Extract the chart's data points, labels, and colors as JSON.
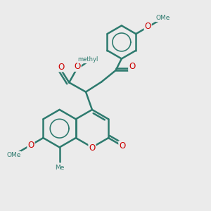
{
  "bg_color": "#ebebeb",
  "bond_color": "#2d7a6e",
  "O_color": "#cc0000",
  "bond_width": 1.8,
  "font_size": 8.5,
  "fig_size": [
    3.0,
    3.0
  ],
  "dpi": 100,
  "xlim": [
    0,
    10
  ],
  "ylim": [
    0,
    10
  ]
}
